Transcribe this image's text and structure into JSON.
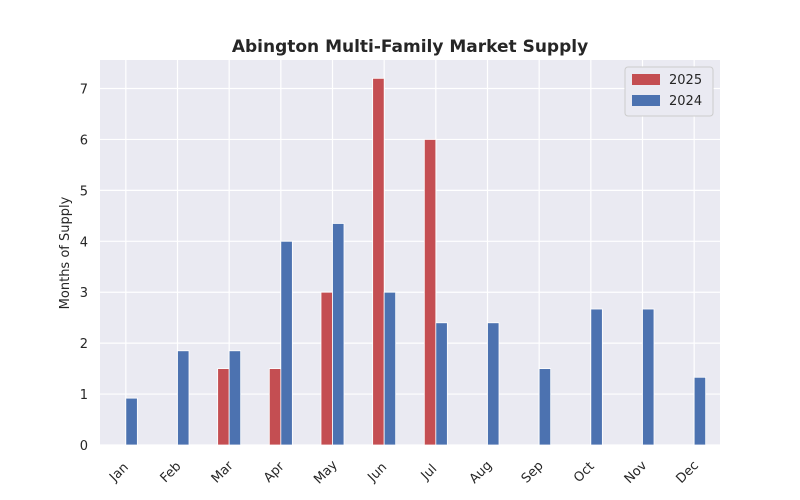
{
  "chart_data": {
    "type": "bar",
    "title": "Abington Multi-Family Market Supply",
    "xlabel": "",
    "ylabel": "Months of Supply",
    "categories": [
      "Jan",
      "Feb",
      "Mar",
      "Apr",
      "May",
      "Jun",
      "Jul",
      "Aug",
      "Sep",
      "Oct",
      "Nov",
      "Dec"
    ],
    "series": [
      {
        "name": "2025",
        "color": "#c44e52",
        "values": [
          null,
          null,
          1.5,
          1.5,
          3.0,
          7.2,
          6.0,
          null,
          null,
          null,
          null,
          null
        ]
      },
      {
        "name": "2024",
        "color": "#4c72b0",
        "values": [
          0.92,
          1.85,
          1.85,
          4.0,
          4.35,
          3.0,
          2.4,
          2.4,
          1.5,
          2.67,
          2.67,
          1.33
        ]
      }
    ],
    "ylim": [
      0,
      7.56
    ],
    "yticks": [
      0,
      1,
      2,
      3,
      4,
      5,
      6,
      7
    ],
    "grid": true,
    "legend_position": "top-right",
    "plot_background": "#eaeaf2"
  }
}
